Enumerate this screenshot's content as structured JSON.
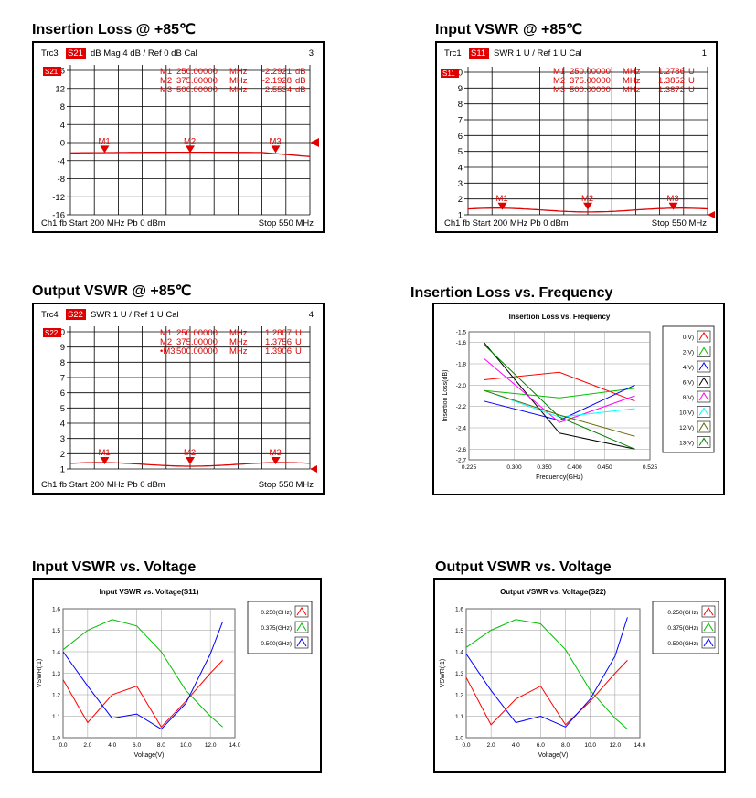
{
  "vna_panels": [
    {
      "id": "il85",
      "title": "Insertion Loss @ +85℃",
      "trace_label": "Trc3",
      "param": "S21",
      "header_rest": "dB Mag  4 dB /  Ref 0 dB      Cal",
      "channel_number": "3",
      "tag_label": "S21",
      "markers": [
        {
          "name": "M1",
          "freq": "250.00000",
          "unit": "MHz",
          "value": "-2.2921",
          "vunit": "dB"
        },
        {
          "name": "M2",
          "freq": "375.00000",
          "unit": "MHz",
          "value": "-2.1928",
          "vunit": "dB"
        },
        {
          "name": "M3",
          "freq": "500.00000",
          "unit": "MHz",
          "value": "-2.5534",
          "vunit": "dB"
        }
      ],
      "footer_left": "Ch1  fb  Start  200 MHz   Pb   0 dBm",
      "footer_right": "Stop  550 MHz",
      "y_ticks": [
        "16",
        "12",
        "8",
        "4",
        "0",
        "-4",
        "-8",
        "-12",
        "-16"
      ]
    },
    {
      "id": "ivswr85",
      "title": "Input VSWR @ +85℃",
      "trace_label": "Trc1",
      "param": "S11",
      "header_rest": "SWR  1 U /  Ref 1 U       Cal",
      "channel_number": "1",
      "tag_label": "S11",
      "markers": [
        {
          "name": "M1",
          "freq": "250.00000",
          "unit": "MHz",
          "value": "1.2786",
          "vunit": "U"
        },
        {
          "name": "M2",
          "freq": "375.00000",
          "unit": "MHz",
          "value": "1.3852",
          "vunit": "U"
        },
        {
          "name": "M3",
          "freq": "500.00000",
          "unit": "MHz",
          "value": "1.3872",
          "vunit": "U"
        }
      ],
      "footer_left": "Ch1  fb  Start  200 MHz   Pb   0 dBm",
      "footer_right": "Stop  550 MHz",
      "y_ticks": [
        "10",
        "9",
        "8",
        "7",
        "6",
        "5",
        "4",
        "3",
        "2",
        "1"
      ]
    },
    {
      "id": "ovswr85",
      "title": "Output VSWR @ +85℃",
      "trace_label": "Trc4",
      "param": "S22",
      "header_rest": "SWR  1 U /  Ref 1 U       Cal",
      "channel_number": "4",
      "tag_label": "S22",
      "markers": [
        {
          "name": "M1",
          "freq": "250.00000",
          "unit": "MHz",
          "value": "1.2807",
          "vunit": "U"
        },
        {
          "name": "M2",
          "freq": "375.00000",
          "unit": "MHz",
          "value": "1.3756",
          "vunit": "U"
        },
        {
          "name": "•M3",
          "freq": "500.00000",
          "unit": "MHz",
          "value": "1.3906",
          "vunit": "U"
        }
      ],
      "footer_left": "Ch1  fb  Start  200 MHz   Pb   0 dBm",
      "footer_right": "Stop  550 MHz",
      "y_ticks": [
        "10",
        "9",
        "8",
        "7",
        "6",
        "5",
        "4",
        "3",
        "2",
        "1"
      ]
    }
  ],
  "chart_data": [
    {
      "id": "ilf",
      "panel_title": "Insertion Loss vs. Frequency",
      "type": "line",
      "title": "Insertion Loss vs. Frequency",
      "xlabel": "Frequency(GHz)",
      "ylabel": "Insertion Loss(dB)",
      "xlim": [
        0.225,
        0.525
      ],
      "ylim": [
        -2.7,
        -1.5
      ],
      "x_ticks": [
        "0.225",
        "0.300",
        "0.350",
        "0.400",
        "0.450",
        "0.525"
      ],
      "x_tick_values": [
        0.225,
        0.3,
        0.35,
        0.4,
        0.45,
        0.525
      ],
      "y_ticks": [
        "-1.5",
        "-1.6",
        "-1.8",
        "-2.0",
        "-2.2",
        "-2.4",
        "-2.6",
        "-2.7"
      ],
      "y_tick_values": [
        -1.5,
        -1.6,
        -1.8,
        -2.0,
        -2.2,
        -2.4,
        -2.6,
        -2.7
      ],
      "x": [
        0.25,
        0.375,
        0.5
      ],
      "legend_position": "right",
      "series": [
        {
          "name": "0(V)",
          "color": "#ff0000",
          "values": [
            -1.95,
            -1.88,
            -2.15
          ]
        },
        {
          "name": "2(V)",
          "color": "#00c000",
          "values": [
            -2.05,
            -2.12,
            -2.03
          ]
        },
        {
          "name": "4(V)",
          "color": "#0000ff",
          "values": [
            -2.15,
            -2.33,
            -2.0
          ]
        },
        {
          "name": "6(V)",
          "color": "#000000",
          "values": [
            -1.6,
            -2.45,
            -2.6
          ]
        },
        {
          "name": "8(V)",
          "color": "#ff00ff",
          "values": [
            -1.75,
            -2.35,
            -2.1
          ]
        },
        {
          "name": "10(V)",
          "color": "#00ffff",
          "values": [
            -2.05,
            -2.3,
            -2.22
          ]
        },
        {
          "name": "12(V)",
          "color": "#666600",
          "values": [
            -2.05,
            -2.28,
            -2.48
          ]
        },
        {
          "name": "13(V)",
          "color": "#008000",
          "values": [
            -1.62,
            -2.3,
            -2.6
          ]
        }
      ]
    },
    {
      "id": "ivv",
      "panel_title": "Input VSWR vs. Voltage",
      "type": "line",
      "title": "Input VSWR vs. Voltage(S11)",
      "xlabel": "Voltage(V)",
      "ylabel": "VSWR(:1)",
      "xlim": [
        0,
        14
      ],
      "ylim": [
        1.0,
        1.6
      ],
      "x_ticks": [
        "0.0",
        "2.0",
        "4.0",
        "6.0",
        "8.0",
        "10.0",
        "12.0",
        "14.0"
      ],
      "x_tick_values": [
        0,
        2,
        4,
        6,
        8,
        10,
        12,
        14
      ],
      "y_ticks": [
        "1.6",
        "1.5",
        "1.4",
        "1.3",
        "1.2",
        "1.1",
        "1.0"
      ],
      "y_tick_values": [
        1.6,
        1.5,
        1.4,
        1.3,
        1.2,
        1.1,
        1.0
      ],
      "x": [
        0,
        2,
        4,
        6,
        8,
        10,
        12,
        13
      ],
      "legend_position": "right",
      "series": [
        {
          "name": "0.250(GHz)",
          "color": "#ff0000",
          "values": [
            1.27,
            1.07,
            1.2,
            1.24,
            1.05,
            1.17,
            1.3,
            1.36
          ]
        },
        {
          "name": "0.375(GHz)",
          "color": "#00c000",
          "values": [
            1.41,
            1.5,
            1.55,
            1.52,
            1.4,
            1.22,
            1.1,
            1.05
          ]
        },
        {
          "name": "0.500(GHz)",
          "color": "#0000ff",
          "values": [
            1.4,
            1.24,
            1.09,
            1.11,
            1.04,
            1.16,
            1.39,
            1.54
          ]
        }
      ]
    },
    {
      "id": "ovv",
      "panel_title": "Output VSWR vs. Voltage",
      "type": "line",
      "title": "Output VSWR vs. Voltage(S22)",
      "xlabel": "Voltage(V)",
      "ylabel": "VSWR(:1)",
      "xlim": [
        0,
        14
      ],
      "ylim": [
        1.0,
        1.6
      ],
      "x_ticks": [
        "0.0",
        "2.0",
        "4.0",
        "6.0",
        "8.0",
        "10.0",
        "12.0",
        "14.0"
      ],
      "x_tick_values": [
        0,
        2,
        4,
        6,
        8,
        10,
        12,
        14
      ],
      "y_ticks": [
        "1.6",
        "1.5",
        "1.4",
        "1.3",
        "1.2",
        "1.1",
        "1.0"
      ],
      "y_tick_values": [
        1.6,
        1.5,
        1.4,
        1.3,
        1.2,
        1.1,
        1.0
      ],
      "x": [
        0,
        2,
        4,
        6,
        8,
        10,
        12,
        13
      ],
      "legend_position": "right",
      "series": [
        {
          "name": "0.250(GHz)",
          "color": "#ff0000",
          "values": [
            1.28,
            1.06,
            1.18,
            1.24,
            1.06,
            1.17,
            1.3,
            1.36
          ]
        },
        {
          "name": "0.375(GHz)",
          "color": "#00c000",
          "values": [
            1.42,
            1.5,
            1.55,
            1.53,
            1.41,
            1.22,
            1.09,
            1.04
          ]
        },
        {
          "name": "0.500(GHz)",
          "color": "#0000ff",
          "values": [
            1.39,
            1.22,
            1.07,
            1.1,
            1.05,
            1.18,
            1.38,
            1.56
          ]
        }
      ]
    }
  ]
}
